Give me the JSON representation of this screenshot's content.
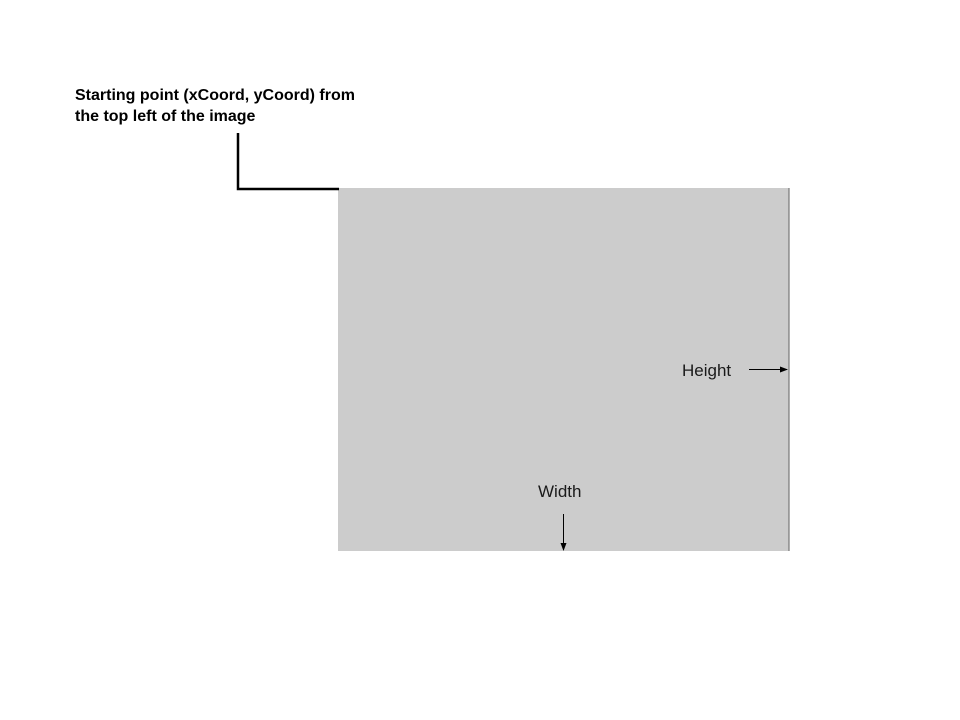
{
  "diagram": {
    "start_point_label_line1": "Starting point (xCoord, yCoord) from",
    "start_point_label_line2": "the top left of the image",
    "height_label": "Height",
    "width_label": "Width"
  },
  "colors": {
    "region_fill": "#cccccc",
    "region_edge": "#777777",
    "line": "#000000",
    "text": "#000000",
    "background": "#ffffff"
  }
}
